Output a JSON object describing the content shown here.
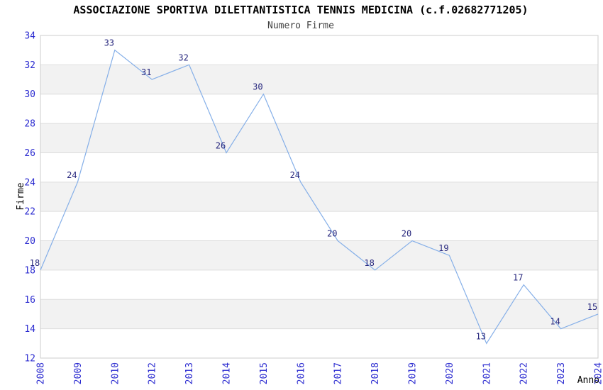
{
  "header": {
    "title": "ASSOCIAZIONE SPORTIVA DILETTANTISTICA TENNIS MEDICINA (c.f.02682771205)",
    "subtitle": "Numero Firme"
  },
  "chart_data": {
    "type": "line",
    "title": "Numero Firme",
    "categories": [
      "2008",
      "2009",
      "2010",
      "2012",
      "2013",
      "2014",
      "2015",
      "2016",
      "2017",
      "2018",
      "2019",
      "2020",
      "2021",
      "2022",
      "2023",
      "2024"
    ],
    "values": [
      18,
      24,
      33,
      31,
      32,
      26,
      30,
      24,
      20,
      18,
      20,
      19,
      13,
      17,
      14,
      15
    ],
    "xlabel": "Anno",
    "ylabel": "Firme",
    "ylim": [
      12,
      34
    ],
    "ytick_step": 2,
    "grid": true,
    "legend_position": "none",
    "band_pattern": "alternating horizontal gray bands between even gridlines",
    "colors": {
      "line": "#85afe8",
      "tick_labels": "#2b2bd0",
      "data_labels": "#28287e",
      "band": "#f2f2f2",
      "grid": "#dddddd",
      "border": "#cccccc",
      "title": "#000000",
      "subtitle": "#404040",
      "axis_titles": "#000000",
      "background": "#ffffff"
    }
  }
}
